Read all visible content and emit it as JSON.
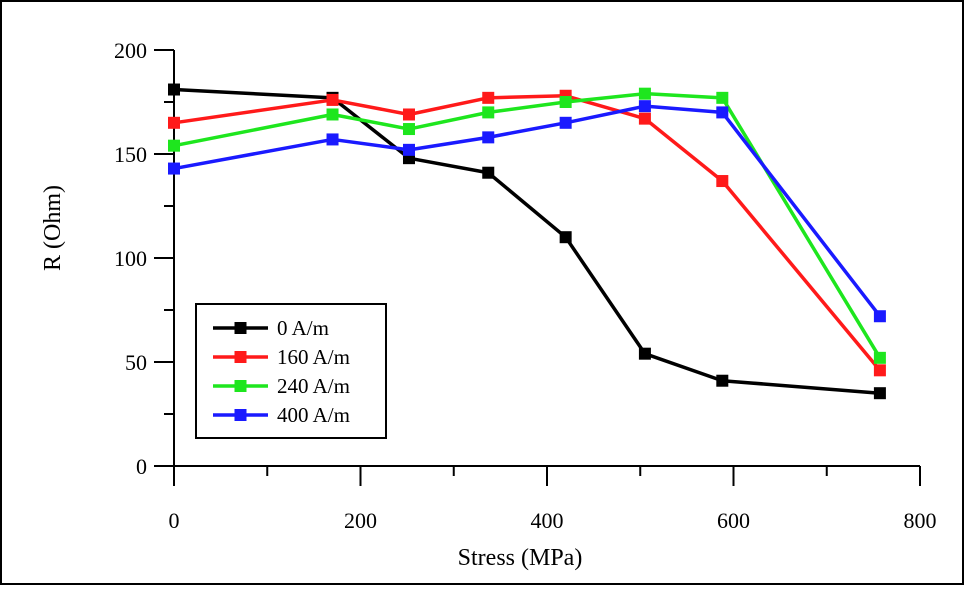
{
  "chart_data": {
    "type": "line",
    "xlabel": "Stress (MPa)",
    "ylabel": "R (Ohm)",
    "xlim": [
      0,
      800
    ],
    "ylim": [
      0,
      200
    ],
    "x_ticks": [
      "0",
      "200",
      "400",
      "600",
      "800"
    ],
    "y_ticks": [
      "0",
      "50",
      "100",
      "150",
      "200"
    ],
    "grid": false,
    "legend_position": "bottom-left",
    "series": [
      {
        "name": "0 A/m",
        "color": "#000000",
        "marker": "square",
        "points": [
          [
            0,
            181
          ],
          [
            170,
            177
          ],
          [
            252,
            148
          ],
          [
            337,
            141
          ],
          [
            420,
            110
          ],
          [
            505,
            54
          ],
          [
            588,
            41
          ],
          [
            757,
            35
          ]
        ]
      },
      {
        "name": "160 A/m",
        "color": "#ff1a1a",
        "marker": "square",
        "points": [
          [
            0,
            165
          ],
          [
            170,
            176
          ],
          [
            252,
            169
          ],
          [
            337,
            177
          ],
          [
            420,
            178
          ],
          [
            505,
            167
          ],
          [
            588,
            137
          ],
          [
            757,
            46
          ]
        ]
      },
      {
        "name": "240 A/m",
        "color": "#1ee61e",
        "marker": "square",
        "points": [
          [
            0,
            154
          ],
          [
            170,
            169
          ],
          [
            252,
            162
          ],
          [
            337,
            170
          ],
          [
            420,
            175
          ],
          [
            505,
            179
          ],
          [
            588,
            177
          ],
          [
            757,
            52
          ]
        ]
      },
      {
        "name": "400 A/m",
        "color": "#1a1aff",
        "marker": "square",
        "points": [
          [
            0,
            143
          ],
          [
            170,
            157
          ],
          [
            252,
            152
          ],
          [
            337,
            158
          ],
          [
            420,
            165
          ],
          [
            505,
            173
          ],
          [
            588,
            170
          ],
          [
            757,
            72
          ]
        ]
      }
    ]
  }
}
